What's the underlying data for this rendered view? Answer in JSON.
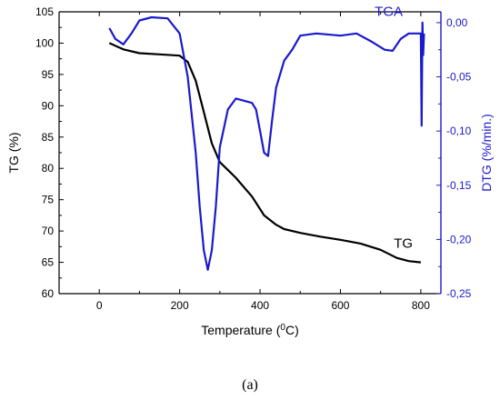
{
  "chart_data": {
    "type": "line",
    "caption": "(a)",
    "xlabel_text": "Temperature (",
    "xlabel_sup": "0",
    "xlabel_unit": "C)",
    "ylabel_left": "TG (%)",
    "ylabel_right": "DTG (%/min.)",
    "xlim": [
      -100,
      850
    ],
    "xticks": [
      0,
      200,
      400,
      600,
      800
    ],
    "ylim_left": [
      60,
      105
    ],
    "yticks_left": [
      60,
      65,
      70,
      75,
      80,
      85,
      90,
      95,
      100,
      105
    ],
    "ylim_right": [
      -0.25,
      0.01
    ],
    "yticks_right": [
      "0,00",
      "-0,05",
      "-0,10",
      "-0,15",
      "-0,20",
      "-0,25"
    ],
    "yticks_right_values": [
      0,
      -0.05,
      -0.1,
      -0.15,
      -0.2,
      -0.25
    ],
    "colors": {
      "tg": "#000000",
      "dtg": "#1a1acc",
      "right_axis": "#1a1acc"
    },
    "series": [
      {
        "name": "TG",
        "axis": "left",
        "x": [
          25,
          60,
          100,
          150,
          200,
          220,
          240,
          260,
          280,
          300,
          340,
          380,
          410,
          440,
          460,
          500,
          550,
          600,
          650,
          700,
          740,
          770,
          800
        ],
        "y": [
          100,
          99,
          98.4,
          98.2,
          98,
          97,
          94,
          89,
          84,
          81,
          78.5,
          75.5,
          72.5,
          71,
          70.3,
          69.7,
          69.1,
          68.6,
          68,
          67,
          65.7,
          65.2,
          65
        ]
      },
      {
        "name": "TGA",
        "axis": "right",
        "x": [
          25,
          40,
          60,
          80,
          100,
          130,
          170,
          200,
          220,
          240,
          250,
          260,
          270,
          280,
          290,
          300,
          320,
          340,
          360,
          380,
          390,
          400,
          410,
          420,
          430,
          440,
          460,
          480,
          500,
          540,
          600,
          640,
          680,
          710,
          730,
          750,
          770,
          790,
          800,
          802,
          804,
          806,
          808
        ],
        "y": [
          -0.005,
          -0.015,
          -0.02,
          -0.01,
          0.002,
          0.005,
          0.004,
          -0.01,
          -0.05,
          -0.12,
          -0.17,
          -0.21,
          -0.228,
          -0.21,
          -0.17,
          -0.115,
          -0.08,
          -0.07,
          -0.072,
          -0.074,
          -0.08,
          -0.1,
          -0.12,
          -0.123,
          -0.09,
          -0.06,
          -0.035,
          -0.025,
          -0.012,
          -0.01,
          -0.012,
          -0.01,
          -0.018,
          -0.025,
          -0.026,
          -0.015,
          -0.01,
          -0.01,
          -0.01,
          -0.095,
          0.0,
          -0.03,
          -0.01
        ]
      }
    ]
  }
}
